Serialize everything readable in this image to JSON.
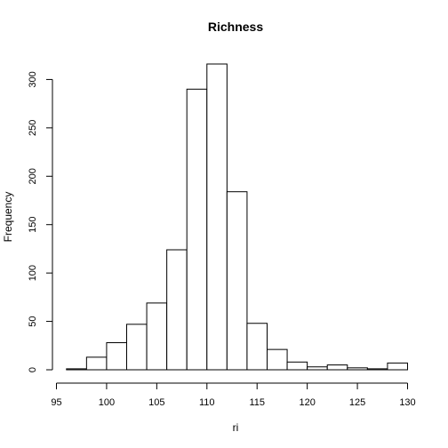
{
  "chart_data": {
    "type": "bar",
    "subtype": "histogram",
    "title": "Richness",
    "xlabel": "ri",
    "ylabel": "Frequency",
    "xlim": [
      95,
      130
    ],
    "ylim": [
      0,
      316
    ],
    "x_ticks": [
      95,
      100,
      105,
      110,
      115,
      120,
      125,
      130
    ],
    "y_ticks": [
      0,
      50,
      100,
      150,
      200,
      250,
      300
    ],
    "bins": [
      {
        "start": 96,
        "end": 98,
        "count": 1
      },
      {
        "start": 98,
        "end": 100,
        "count": 13
      },
      {
        "start": 100,
        "end": 102,
        "count": 28
      },
      {
        "start": 102,
        "end": 104,
        "count": 47
      },
      {
        "start": 104,
        "end": 106,
        "count": 69
      },
      {
        "start": 106,
        "end": 108,
        "count": 124
      },
      {
        "start": 108,
        "end": 110,
        "count": 290
      },
      {
        "start": 110,
        "end": 112,
        "count": 316
      },
      {
        "start": 112,
        "end": 114,
        "count": 184
      },
      {
        "start": 114,
        "end": 116,
        "count": 48
      },
      {
        "start": 116,
        "end": 118,
        "count": 21
      },
      {
        "start": 118,
        "end": 120,
        "count": 8
      },
      {
        "start": 120,
        "end": 122,
        "count": 3
      },
      {
        "start": 122,
        "end": 124,
        "count": 5
      },
      {
        "start": 124,
        "end": 126,
        "count": 2
      },
      {
        "start": 126,
        "end": 128,
        "count": 1
      },
      {
        "start": 128,
        "end": 130,
        "count": 7
      }
    ],
    "bar_fill": "#ffffff",
    "bar_stroke": "#000000",
    "grid": false,
    "legend": "none"
  }
}
